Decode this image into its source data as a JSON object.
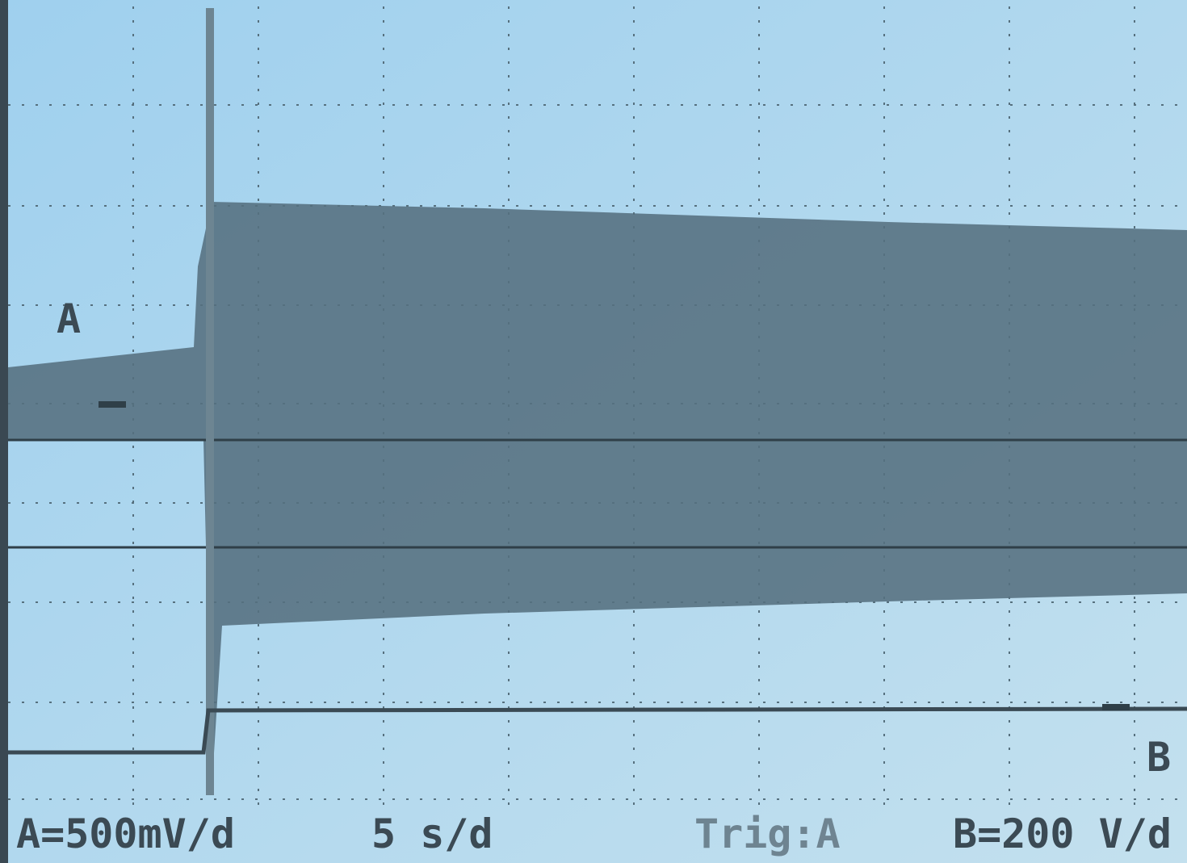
{
  "screen": {
    "channel_a_marker": "A",
    "channel_b_marker": "B",
    "status": {
      "channel_a_scale": "A=500mV/d",
      "timebase": "5 s/d",
      "trigger": "Trig:A",
      "channel_b_scale": "B=200 V/d"
    }
  }
}
